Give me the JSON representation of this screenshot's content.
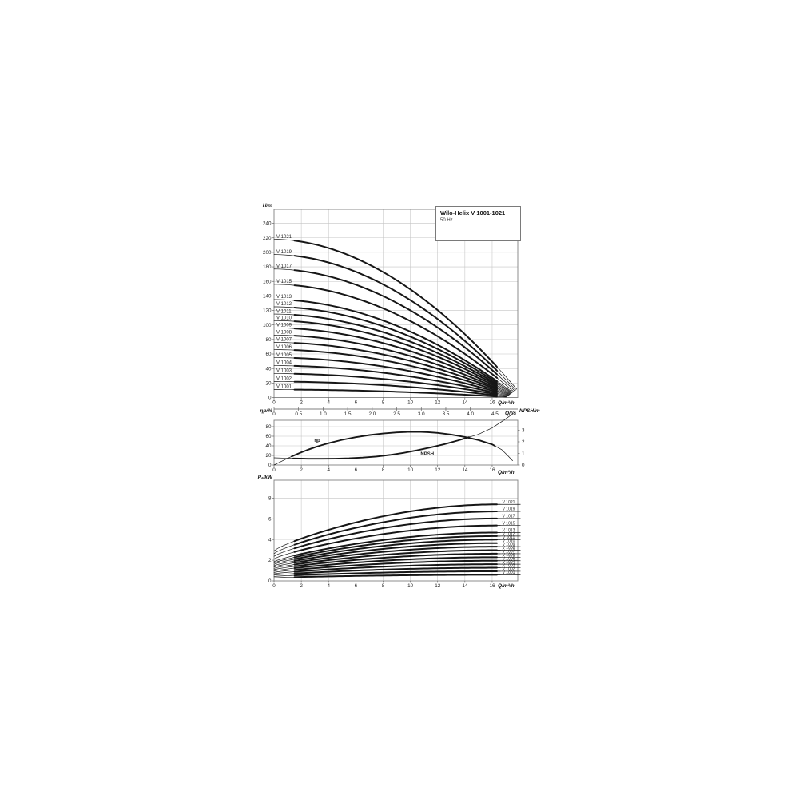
{
  "figure": {
    "title": "Wilo-Helix V 1001-1021",
    "subtitle": "50 Hz",
    "curve_color": "#161616",
    "grid_color": "#c4c4c4",
    "frame_color": "#808080"
  },
  "axis_labels": {
    "head": "H/m",
    "flow": "Q/m³/h",
    "flow2": "Q/l/s",
    "eff": "ηp/%",
    "npsh": "NPSH/m",
    "power": "P₂/kW"
  },
  "chart_data": [
    {
      "type": "line",
      "name": "head-flow-curves",
      "title": "Wilo-Helix V 1001-1021",
      "subtitle": "50 Hz",
      "xlabel": "Q/m³/h",
      "x2label": "Q/l/s",
      "ylabel": "H/m",
      "xlim": [
        0,
        17.9
      ],
      "ylim": [
        0,
        259
      ],
      "grid": true,
      "xticks": [
        0,
        2,
        4,
        6,
        8,
        10,
        12,
        14,
        16
      ],
      "yticks": [
        0,
        20,
        40,
        60,
        80,
        100,
        120,
        140,
        160,
        180,
        200,
        220,
        240
      ],
      "x2ticks": [
        "0",
        "0.5",
        "1.0",
        "1.5",
        "2.0",
        "2.5",
        "3.0",
        "3.5",
        "4.0",
        "4.5"
      ],
      "series": [
        {
          "label": "V 1021",
          "h0": 218,
          "h_end": 11.6,
          "q_end": 17.8
        },
        {
          "label": "V 1019",
          "h0": 197,
          "h_end": 10.5,
          "q_end": 17.73
        },
        {
          "label": "V 1017",
          "h0": 177,
          "h_end": 9.4,
          "q_end": 17.65
        },
        {
          "label": "V 1015",
          "h0": 156,
          "h_end": 8.3,
          "q_end": 17.57
        },
        {
          "label": "V 1013",
          "h0": 135,
          "h_end": 7.2,
          "q_end": 17.5
        },
        {
          "label": "V 1012",
          "h0": 125,
          "h_end": 6.6,
          "q_end": 17.46
        },
        {
          "label": "V 1011",
          "h0": 115,
          "h_end": 6.1,
          "q_end": 17.42
        },
        {
          "label": "V 1010",
          "h0": 106,
          "h_end": 5.5,
          "q_end": 17.38
        },
        {
          "label": "V 1009",
          "h0": 96,
          "h_end": 5.0,
          "q_end": 17.34
        },
        {
          "label": "V 1008",
          "h0": 86,
          "h_end": 4.4,
          "q_end": 17.3
        },
        {
          "label": "V 1007",
          "h0": 76,
          "h_end": 3.9,
          "q_end": 17.27
        },
        {
          "label": "V 1006",
          "h0": 66,
          "h_end": 3.3,
          "q_end": 17.23
        },
        {
          "label": "V 1005",
          "h0": 55,
          "h_end": 2.8,
          "q_end": 17.19
        },
        {
          "label": "V 1004",
          "h0": 44,
          "h_end": 2.2,
          "q_end": 17.15
        },
        {
          "label": "V 1003",
          "h0": 33,
          "h_end": 1.7,
          "q_end": 17.11
        },
        {
          "label": "V 1002",
          "h0": 22,
          "h_end": 1.1,
          "q_end": 17.08
        },
        {
          "label": "V 1001",
          "h0": 11,
          "h_end": 0.6,
          "q_end": 17.04
        }
      ]
    },
    {
      "type": "line",
      "name": "efficiency-npsh-curves",
      "xlabel": "Q/m³/h",
      "ylabel": "ηp/%",
      "y2label": "NPSH/m",
      "xlim": [
        0,
        17.9
      ],
      "ylim": [
        0,
        93
      ],
      "y2lim": [
        0,
        3.9
      ],
      "grid": true,
      "xticks": [
        0,
        2,
        4,
        6,
        8,
        10,
        12,
        14,
        16
      ],
      "yticks": [
        0,
        20,
        40,
        60,
        80
      ],
      "y2ticks": [
        0,
        1,
        2,
        3
      ],
      "series": [
        {
          "label": "ηp",
          "axis": "y1",
          "label_pos": [
            2.95,
            48
          ],
          "points": [
            [
              0,
              0
            ],
            [
              0.5,
              7
            ],
            [
              1,
              14
            ],
            [
              1.5,
              20.5
            ],
            [
              2,
              26.5
            ],
            [
              2.5,
              32
            ],
            [
              3,
              37
            ],
            [
              3.5,
              41.5
            ],
            [
              4,
              45.5
            ],
            [
              5,
              52.5
            ],
            [
              6,
              58
            ],
            [
              7,
              62.5
            ],
            [
              8,
              65.8
            ],
            [
              9,
              68
            ],
            [
              9.8,
              69
            ],
            [
              10.6,
              69.2
            ],
            [
              11.3,
              68.5
            ],
            [
              12,
              67
            ],
            [
              13,
              63.5
            ],
            [
              14,
              58.5
            ],
            [
              15,
              52
            ],
            [
              16,
              43
            ],
            [
              16.7,
              32
            ],
            [
              17.2,
              18
            ],
            [
              17.5,
              9
            ]
          ],
          "bold_range": [
            1.3,
            16.2
          ]
        },
        {
          "label": "NPSH",
          "axis": "y2",
          "label_pos": [
            10.75,
            0.83
          ],
          "points": [
            [
              0,
              0.62
            ],
            [
              0.8,
              0.59
            ],
            [
              1.5,
              0.56
            ],
            [
              2.5,
              0.54
            ],
            [
              3.5,
              0.54
            ],
            [
              4.5,
              0.55
            ],
            [
              5.5,
              0.58
            ],
            [
              6.5,
              0.64
            ],
            [
              7.5,
              0.73
            ],
            [
              8.5,
              0.87
            ],
            [
              9.5,
              1.05
            ],
            [
              10.5,
              1.27
            ],
            [
              11.5,
              1.52
            ],
            [
              12.5,
              1.8
            ],
            [
              13.5,
              2.12
            ],
            [
              14.3,
              2.4
            ],
            [
              15,
              2.65
            ],
            [
              16,
              3.2
            ],
            [
              16.9,
              3.9
            ],
            [
              17.55,
              4.45
            ]
          ],
          "bold_range": [
            1.4,
            14.3
          ]
        }
      ]
    },
    {
      "type": "line",
      "name": "power-flow-curves",
      "xlabel": "Q/m³/h",
      "ylabel": "P₂/kW",
      "xlim": [
        0,
        17.9
      ],
      "ylim": [
        0,
        9.7
      ],
      "grid": true,
      "xticks": [
        0,
        2,
        4,
        6,
        8,
        10,
        12,
        14,
        16
      ],
      "yticks": [
        0,
        2,
        4,
        6,
        8
      ],
      "series": [
        {
          "label": "V 1021",
          "p0": 2.9,
          "p_end": 7.39
        },
        {
          "label": "V 1019",
          "p0": 2.64,
          "p_end": 6.71
        },
        {
          "label": "V 1017",
          "p0": 2.38,
          "p_end": 6.03
        },
        {
          "label": "V 1015",
          "p0": 2.12,
          "p_end": 5.35
        },
        {
          "label": "V 1013",
          "p0": 1.86,
          "p_end": 4.67
        },
        {
          "label": "V 1012",
          "p0": 1.73,
          "p_end": 4.33
        },
        {
          "label": "V 1011",
          "p0": 1.6,
          "p_end": 3.99
        },
        {
          "label": "V 1010",
          "p0": 1.47,
          "p_end": 3.65
        },
        {
          "label": "V 1009",
          "p0": 1.34,
          "p_end": 3.31
        },
        {
          "label": "V 1008",
          "p0": 1.21,
          "p_end": 2.97
        },
        {
          "label": "V 1007",
          "p0": 1.08,
          "p_end": 2.63
        },
        {
          "label": "V 1006",
          "p0": 0.95,
          "p_end": 2.29
        },
        {
          "label": "V 1005",
          "p0": 0.82,
          "p_end": 1.95
        },
        {
          "label": "V 1004",
          "p0": 0.69,
          "p_end": 1.61
        },
        {
          "label": "V 1003",
          "p0": 0.56,
          "p_end": 1.27
        },
        {
          "label": "V 1002",
          "p0": 0.43,
          "p_end": 0.93
        },
        {
          "label": "V 1001",
          "p0": 0.3,
          "p_end": 0.59
        }
      ]
    }
  ]
}
